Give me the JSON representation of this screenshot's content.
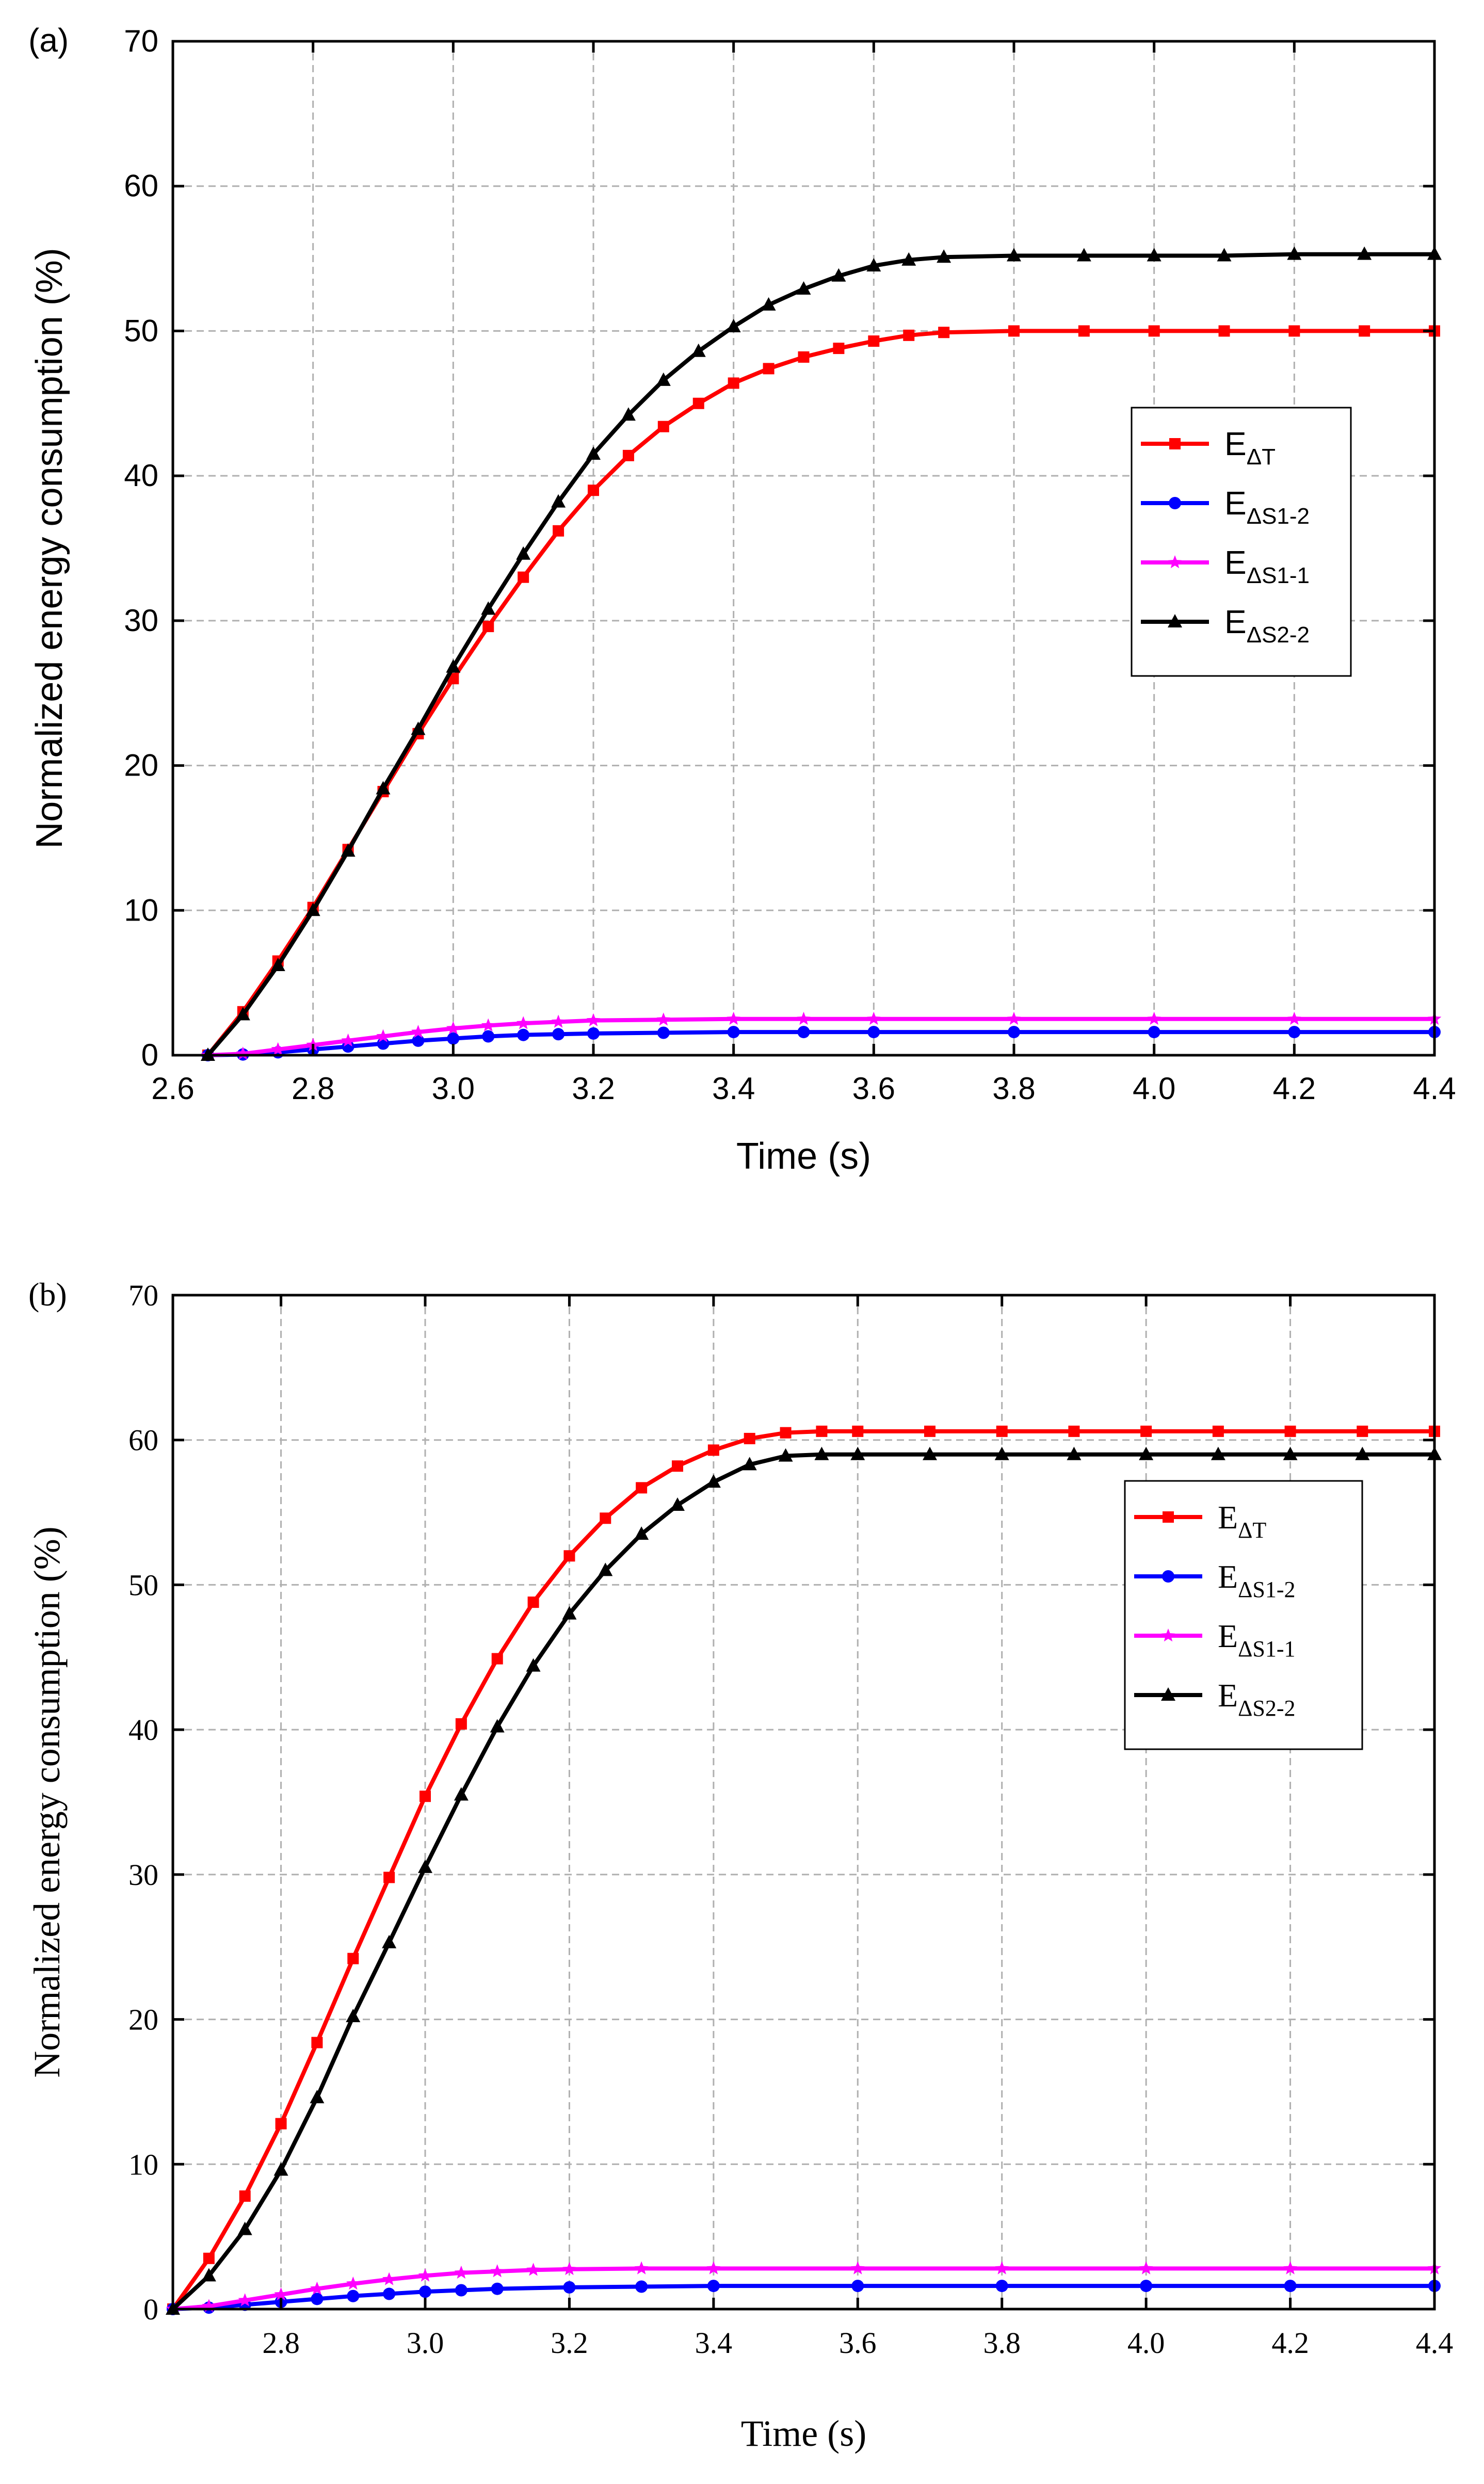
{
  "chart_data": [
    {
      "panel_label": "(a)",
      "type": "line",
      "xlabel": "Time (s)",
      "ylabel": "Normalized energy consumption (%)",
      "xlim": [
        2.6,
        4.4
      ],
      "ylim": [
        0,
        70
      ],
      "xticks": [
        "2.6",
        "2.8",
        "3.0",
        "3.2",
        "3.4",
        "3.6",
        "3.8",
        "4.0",
        "4.2",
        "4.4"
      ],
      "yticks": [
        "0",
        "10",
        "20",
        "30",
        "40",
        "50",
        "60",
        "70"
      ],
      "grid": true,
      "legend_position": "center-right",
      "series": [
        {
          "name": "E",
          "sub": "ΔT",
          "color": "#ff0000",
          "marker": "square",
          "points": [
            [
              2.65,
              0
            ],
            [
              2.7,
              3
            ],
            [
              2.75,
              6.5
            ],
            [
              2.8,
              10.2
            ],
            [
              2.85,
              14.2
            ],
            [
              2.9,
              18.2
            ],
            [
              2.95,
              22.2
            ],
            [
              3.0,
              26
            ],
            [
              3.05,
              29.6
            ],
            [
              3.1,
              33
            ],
            [
              3.15,
              36.2
            ],
            [
              3.2,
              39
            ],
            [
              3.25,
              41.4
            ],
            [
              3.3,
              43.4
            ],
            [
              3.35,
              45
            ],
            [
              3.4,
              46.4
            ],
            [
              3.45,
              47.4
            ],
            [
              3.5,
              48.2
            ],
            [
              3.55,
              48.8
            ],
            [
              3.6,
              49.3
            ],
            [
              3.65,
              49.7
            ],
            [
              3.7,
              49.9
            ],
            [
              3.8,
              50
            ],
            [
              3.9,
              50
            ],
            [
              4.0,
              50
            ],
            [
              4.1,
              50
            ],
            [
              4.2,
              50
            ],
            [
              4.3,
              50
            ],
            [
              4.4,
              50
            ]
          ]
        },
        {
          "name": "E",
          "sub": "ΔS1-2",
          "color": "#0000ff",
          "marker": "circle",
          "points": [
            [
              2.65,
              0
            ],
            [
              2.7,
              0.05
            ],
            [
              2.75,
              0.2
            ],
            [
              2.8,
              0.4
            ],
            [
              2.85,
              0.6
            ],
            [
              2.9,
              0.8
            ],
            [
              2.95,
              1.0
            ],
            [
              3.0,
              1.15
            ],
            [
              3.05,
              1.3
            ],
            [
              3.1,
              1.4
            ],
            [
              3.15,
              1.45
            ],
            [
              3.2,
              1.5
            ],
            [
              3.3,
              1.55
            ],
            [
              3.4,
              1.6
            ],
            [
              3.5,
              1.6
            ],
            [
              3.6,
              1.6
            ],
            [
              3.8,
              1.6
            ],
            [
              4.0,
              1.6
            ],
            [
              4.2,
              1.6
            ],
            [
              4.4,
              1.6
            ]
          ]
        },
        {
          "name": "E",
          "sub": "ΔS1-1",
          "color": "#ff00ff",
          "marker": "star",
          "points": [
            [
              2.65,
              0
            ],
            [
              2.7,
              0.1
            ],
            [
              2.75,
              0.4
            ],
            [
              2.8,
              0.7
            ],
            [
              2.85,
              1.0
            ],
            [
              2.9,
              1.3
            ],
            [
              2.95,
              1.6
            ],
            [
              3.0,
              1.85
            ],
            [
              3.05,
              2.05
            ],
            [
              3.1,
              2.2
            ],
            [
              3.15,
              2.3
            ],
            [
              3.2,
              2.4
            ],
            [
              3.3,
              2.45
            ],
            [
              3.4,
              2.5
            ],
            [
              3.5,
              2.5
            ],
            [
              3.6,
              2.5
            ],
            [
              3.8,
              2.5
            ],
            [
              4.0,
              2.5
            ],
            [
              4.2,
              2.5
            ],
            [
              4.4,
              2.5
            ]
          ]
        },
        {
          "name": "E",
          "sub": "ΔS2-2",
          "color": "#000000",
          "marker": "triangle",
          "points": [
            [
              2.65,
              0
            ],
            [
              2.7,
              2.8
            ],
            [
              2.75,
              6.2
            ],
            [
              2.8,
              10
            ],
            [
              2.85,
              14.1
            ],
            [
              2.9,
              18.4
            ],
            [
              2.95,
              22.5
            ],
            [
              3.0,
              26.8
            ],
            [
              3.05,
              30.8
            ],
            [
              3.1,
              34.6
            ],
            [
              3.15,
              38.2
            ],
            [
              3.2,
              41.5
            ],
            [
              3.25,
              44.2
            ],
            [
              3.3,
              46.6
            ],
            [
              3.35,
              48.6
            ],
            [
              3.4,
              50.3
            ],
            [
              3.45,
              51.8
            ],
            [
              3.5,
              52.9
            ],
            [
              3.55,
              53.8
            ],
            [
              3.6,
              54.5
            ],
            [
              3.65,
              54.9
            ],
            [
              3.7,
              55.1
            ],
            [
              3.8,
              55.2
            ],
            [
              3.9,
              55.2
            ],
            [
              4.0,
              55.2
            ],
            [
              4.1,
              55.2
            ],
            [
              4.2,
              55.3
            ],
            [
              4.3,
              55.3
            ],
            [
              4.4,
              55.3
            ]
          ]
        }
      ]
    },
    {
      "panel_label": "(b)",
      "type": "line",
      "xlabel": "Time (s)",
      "ylabel": "Normalized energy consumption (%)",
      "xlim": [
        2.65,
        4.4
      ],
      "ylim": [
        0,
        70
      ],
      "xticks": [
        "2.8",
        "3.0",
        "3.2",
        "3.4",
        "3.6",
        "3.8",
        "4.0",
        "4.2",
        "4.4"
      ],
      "yticks": [
        "0",
        "10",
        "20",
        "30",
        "40",
        "50",
        "60",
        "70"
      ],
      "grid": true,
      "legend_position": "upper-right",
      "series": [
        {
          "name": "E",
          "sub": "ΔT",
          "color": "#ff0000",
          "marker": "square",
          "points": [
            [
              2.65,
              0
            ],
            [
              2.7,
              3.5
            ],
            [
              2.75,
              7.8
            ],
            [
              2.8,
              12.8
            ],
            [
              2.85,
              18.4
            ],
            [
              2.9,
              24.2
            ],
            [
              2.95,
              29.8
            ],
            [
              3.0,
              35.4
            ],
            [
              3.05,
              40.4
            ],
            [
              3.1,
              44.9
            ],
            [
              3.15,
              48.8
            ],
            [
              3.2,
              52
            ],
            [
              3.25,
              54.6
            ],
            [
              3.3,
              56.7
            ],
            [
              3.35,
              58.2
            ],
            [
              3.4,
              59.3
            ],
            [
              3.45,
              60.1
            ],
            [
              3.5,
              60.5
            ],
            [
              3.55,
              60.6
            ],
            [
              3.6,
              60.6
            ],
            [
              3.7,
              60.6
            ],
            [
              3.8,
              60.6
            ],
            [
              3.9,
              60.6
            ],
            [
              4.0,
              60.6
            ],
            [
              4.1,
              60.6
            ],
            [
              4.2,
              60.6
            ],
            [
              4.3,
              60.6
            ],
            [
              4.4,
              60.6
            ]
          ]
        },
        {
          "name": "E",
          "sub": "ΔS1-2",
          "color": "#0000ff",
          "marker": "circle",
          "points": [
            [
              2.65,
              0
            ],
            [
              2.7,
              0.1
            ],
            [
              2.75,
              0.3
            ],
            [
              2.8,
              0.5
            ],
            [
              2.85,
              0.7
            ],
            [
              2.9,
              0.9
            ],
            [
              2.95,
              1.05
            ],
            [
              3.0,
              1.2
            ],
            [
              3.05,
              1.3
            ],
            [
              3.1,
              1.4
            ],
            [
              3.2,
              1.5
            ],
            [
              3.3,
              1.55
            ],
            [
              3.4,
              1.6
            ],
            [
              3.6,
              1.6
            ],
            [
              3.8,
              1.6
            ],
            [
              4.0,
              1.6
            ],
            [
              4.2,
              1.6
            ],
            [
              4.4,
              1.6
            ]
          ]
        },
        {
          "name": "E",
          "sub": "ΔS1-1",
          "color": "#ff00ff",
          "marker": "star",
          "points": [
            [
              2.65,
              0
            ],
            [
              2.7,
              0.2
            ],
            [
              2.75,
              0.6
            ],
            [
              2.8,
              1.0
            ],
            [
              2.85,
              1.4
            ],
            [
              2.9,
              1.75
            ],
            [
              2.95,
              2.05
            ],
            [
              3.0,
              2.3
            ],
            [
              3.05,
              2.5
            ],
            [
              3.1,
              2.6
            ],
            [
              3.15,
              2.7
            ],
            [
              3.2,
              2.75
            ],
            [
              3.3,
              2.8
            ],
            [
              3.4,
              2.8
            ],
            [
              3.6,
              2.8
            ],
            [
              3.8,
              2.8
            ],
            [
              4.0,
              2.8
            ],
            [
              4.2,
              2.8
            ],
            [
              4.4,
              2.8
            ]
          ]
        },
        {
          "name": "E",
          "sub": "ΔS2-2",
          "color": "#000000",
          "marker": "triangle",
          "points": [
            [
              2.65,
              0
            ],
            [
              2.7,
              2.3
            ],
            [
              2.75,
              5.5
            ],
            [
              2.8,
              9.6
            ],
            [
              2.85,
              14.6
            ],
            [
              2.9,
              20.2
            ],
            [
              2.95,
              25.3
            ],
            [
              3.0,
              30.5
            ],
            [
              3.05,
              35.5
            ],
            [
              3.1,
              40.2
            ],
            [
              3.15,
              44.4
            ],
            [
              3.2,
              48
            ],
            [
              3.25,
              51
            ],
            [
              3.3,
              53.5
            ],
            [
              3.35,
              55.5
            ],
            [
              3.4,
              57.1
            ],
            [
              3.45,
              58.3
            ],
            [
              3.5,
              58.9
            ],
            [
              3.55,
              59
            ],
            [
              3.6,
              59
            ],
            [
              3.7,
              59
            ],
            [
              3.8,
              59
            ],
            [
              3.9,
              59
            ],
            [
              4.0,
              59
            ],
            [
              4.1,
              59
            ],
            [
              4.2,
              59
            ],
            [
              4.3,
              59
            ],
            [
              4.4,
              59
            ]
          ]
        }
      ]
    }
  ]
}
